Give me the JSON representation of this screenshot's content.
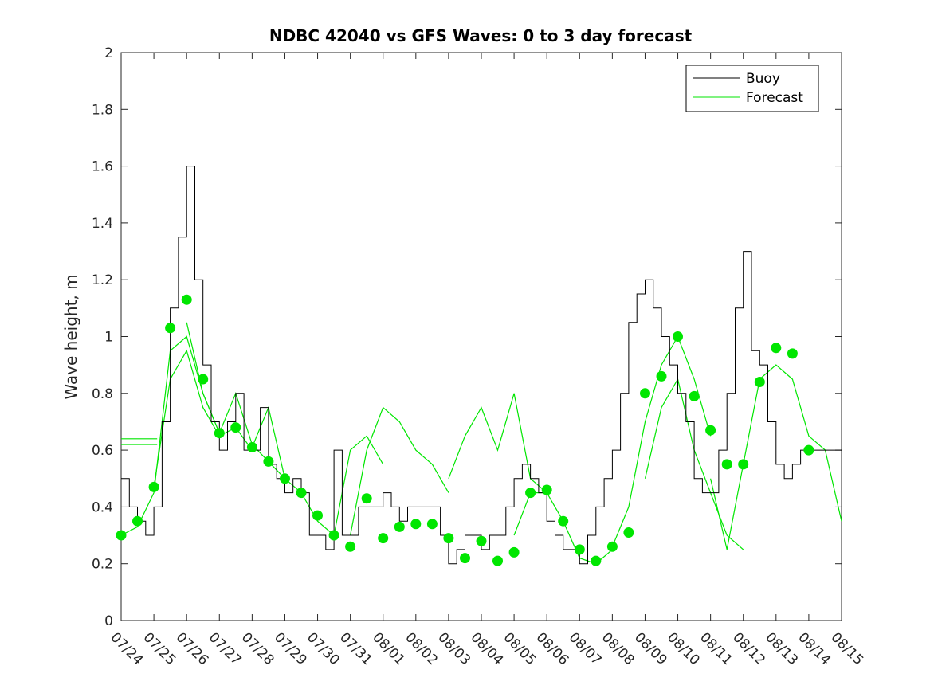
{
  "chart_data": {
    "type": "line",
    "title": "NDBC 42040 vs GFS Waves: 0 to 3 day forecast",
    "xlabel": "",
    "ylabel": "Wave height, m",
    "ylim": [
      0,
      2
    ],
    "yticks": [
      "0",
      "0.2",
      "0.4",
      "0.6",
      "0.8",
      "1",
      "1.2",
      "1.4",
      "1.6",
      "1.8",
      "2"
    ],
    "xlim_days": [
      0,
      22
    ],
    "xticks": [
      "07/24",
      "07/25",
      "07/26",
      "07/27",
      "07/28",
      "07/29",
      "07/30",
      "07/31",
      "08/01",
      "08/02",
      "08/03",
      "08/04",
      "08/05",
      "08/06",
      "08/07",
      "08/08",
      "08/09",
      "08/10",
      "08/11",
      "08/12",
      "08/13",
      "08/14",
      "08/15"
    ],
    "grid": false,
    "legend": {
      "placement": "top-right",
      "entries": [
        "Buoy",
        "Forecast"
      ]
    },
    "colors": {
      "buoy": "#000000",
      "forecast": "#00e600"
    },
    "buoy": {
      "name": "Buoy",
      "day": [
        0,
        0.25,
        0.5,
        0.75,
        1,
        1.25,
        1.5,
        1.75,
        2,
        2.25,
        2.5,
        2.75,
        3,
        3.25,
        3.5,
        3.75,
        4,
        4.25,
        4.5,
        4.75,
        5,
        5.25,
        5.5,
        5.75,
        6,
        6.25,
        6.5,
        6.75,
        7,
        7.25,
        7.5,
        7.75,
        8,
        8.25,
        8.5,
        8.75,
        9,
        9.25,
        9.5,
        9.75,
        10,
        10.25,
        10.5,
        10.75,
        11,
        11.25,
        11.5,
        11.75,
        12,
        12.25,
        12.5,
        12.75,
        13,
        13.25,
        13.5,
        13.75,
        14,
        14.25,
        14.5,
        14.75,
        15,
        15.25,
        15.5,
        15.75,
        16,
        16.25,
        16.5,
        16.75,
        17,
        17.25,
        17.5,
        17.75,
        18,
        18.25,
        18.5,
        18.75,
        19,
        19.25,
        19.5,
        19.75,
        20,
        20.25,
        20.5,
        20.75,
        21,
        21.25,
        21.5,
        21.75,
        22
      ],
      "value": [
        0.5,
        0.4,
        0.35,
        0.3,
        0.4,
        0.7,
        1.1,
        1.35,
        1.6,
        1.2,
        0.9,
        0.7,
        0.6,
        0.7,
        0.8,
        0.6,
        0.6,
        0.75,
        0.55,
        0.5,
        0.45,
        0.5,
        0.45,
        0.3,
        0.3,
        0.25,
        0.6,
        0.3,
        0.3,
        0.4,
        0.4,
        0.4,
        0.45,
        0.4,
        0.35,
        0.4,
        0.4,
        0.4,
        0.4,
        0.3,
        0.2,
        0.25,
        0.3,
        0.3,
        0.25,
        0.3,
        0.3,
        0.4,
        0.5,
        0.55,
        0.5,
        0.45,
        0.35,
        0.3,
        0.25,
        0.25,
        0.2,
        0.3,
        0.4,
        0.5,
        0.6,
        0.8,
        1.05,
        1.15,
        1.2,
        1.1,
        1.0,
        0.9,
        0.8,
        0.7,
        0.5,
        0.45,
        0.45,
        0.6,
        0.8,
        1.1,
        1.3,
        0.95,
        0.9,
        0.7,
        0.55,
        0.5,
        0.55,
        0.6,
        0.6,
        0.6,
        0.6,
        0.6,
        0.6
      ]
    },
    "forecast_points": {
      "name": "Forecast",
      "day": [
        0,
        0.5,
        1,
        1.5,
        2,
        2.5,
        3,
        3.5,
        4,
        4.5,
        5,
        5.5,
        6,
        6.5,
        7,
        7.5,
        8,
        8.5,
        9,
        9.5,
        10,
        10.5,
        11,
        11.5,
        12,
        12.5,
        13,
        13.5,
        14,
        14.5,
        15,
        15.5,
        16,
        16.5,
        17,
        17.5,
        18,
        18.5,
        19,
        19.5,
        20,
        20.5,
        21
      ],
      "value": [
        0.3,
        0.35,
        0.47,
        1.03,
        1.13,
        0.85,
        0.66,
        0.68,
        0.61,
        0.56,
        0.5,
        0.45,
        0.37,
        0.3,
        0.26,
        0.43,
        0.29,
        0.33,
        0.34,
        0.34,
        0.29,
        0.22,
        0.28,
        0.21,
        0.24,
        0.45,
        0.46,
        0.35,
        0.25,
        0.21,
        0.26,
        0.31,
        0.8,
        0.86,
        1.0,
        0.79,
        0.67,
        0.55,
        0.55,
        0.84,
        0.96,
        0.94,
        0.6
      ]
    },
    "forecast_runs": [
      {
        "day": [
          0,
          0.5,
          1,
          1.5,
          2,
          2.5,
          3
        ],
        "value": [
          0.3,
          0.33,
          0.45,
          0.95,
          1.0,
          0.8,
          0.66
        ]
      },
      {
        "day": [
          1,
          1.5,
          2,
          2.5,
          3,
          3.5,
          4
        ],
        "value": [
          0.47,
          0.85,
          0.95,
          0.75,
          0.65,
          0.68,
          0.6
        ]
      },
      {
        "day": [
          2,
          2.5,
          3,
          3.5,
          4,
          4.5,
          5
        ],
        "value": [
          1.05,
          0.8,
          0.66,
          0.8,
          0.62,
          0.56,
          0.5
        ]
      },
      {
        "day": [
          4,
          4.5,
          5,
          5.5,
          6,
          6.5,
          7,
          7.5,
          8
        ],
        "value": [
          0.61,
          0.75,
          0.5,
          0.45,
          0.35,
          0.3,
          0.6,
          0.65,
          0.55
        ]
      },
      {
        "day": [
          7,
          7.5,
          8,
          8.5,
          9,
          9.5,
          10
        ],
        "value": [
          0.3,
          0.6,
          0.75,
          0.7,
          0.6,
          0.55,
          0.45
        ]
      },
      {
        "day": [
          10,
          10.5,
          11,
          11.5,
          12,
          12.5,
          13
        ],
        "value": [
          0.5,
          0.65,
          0.75,
          0.6,
          0.8,
          0.5,
          0.45
        ]
      },
      {
        "day": [
          12,
          12.5,
          13,
          13.5,
          14,
          14.5,
          15
        ],
        "value": [
          0.3,
          0.45,
          0.45,
          0.35,
          0.22,
          0.2,
          0.25
        ]
      },
      {
        "day": [
          15,
          15.5,
          16,
          16.5,
          17,
          17.5,
          18
        ],
        "value": [
          0.26,
          0.4,
          0.7,
          0.9,
          1.0,
          0.85,
          0.65
        ]
      },
      {
        "day": [
          16,
          16.5,
          17,
          17.5,
          18,
          18.5,
          19
        ],
        "value": [
          0.5,
          0.75,
          0.85,
          0.6,
          0.45,
          0.3,
          0.25
        ]
      },
      {
        "day": [
          18,
          18.5,
          19,
          19.5,
          20,
          20.5,
          21,
          21.5,
          22
        ],
        "value": [
          0.5,
          0.25,
          0.55,
          0.85,
          0.9,
          0.85,
          0.65,
          0.6,
          0.35
        ]
      },
      {
        "day": [
          0,
          1.1
        ],
        "value": [
          0.64,
          0.64
        ]
      },
      {
        "day": [
          0,
          1.1
        ],
        "value": [
          0.62,
          0.62
        ]
      }
    ]
  }
}
